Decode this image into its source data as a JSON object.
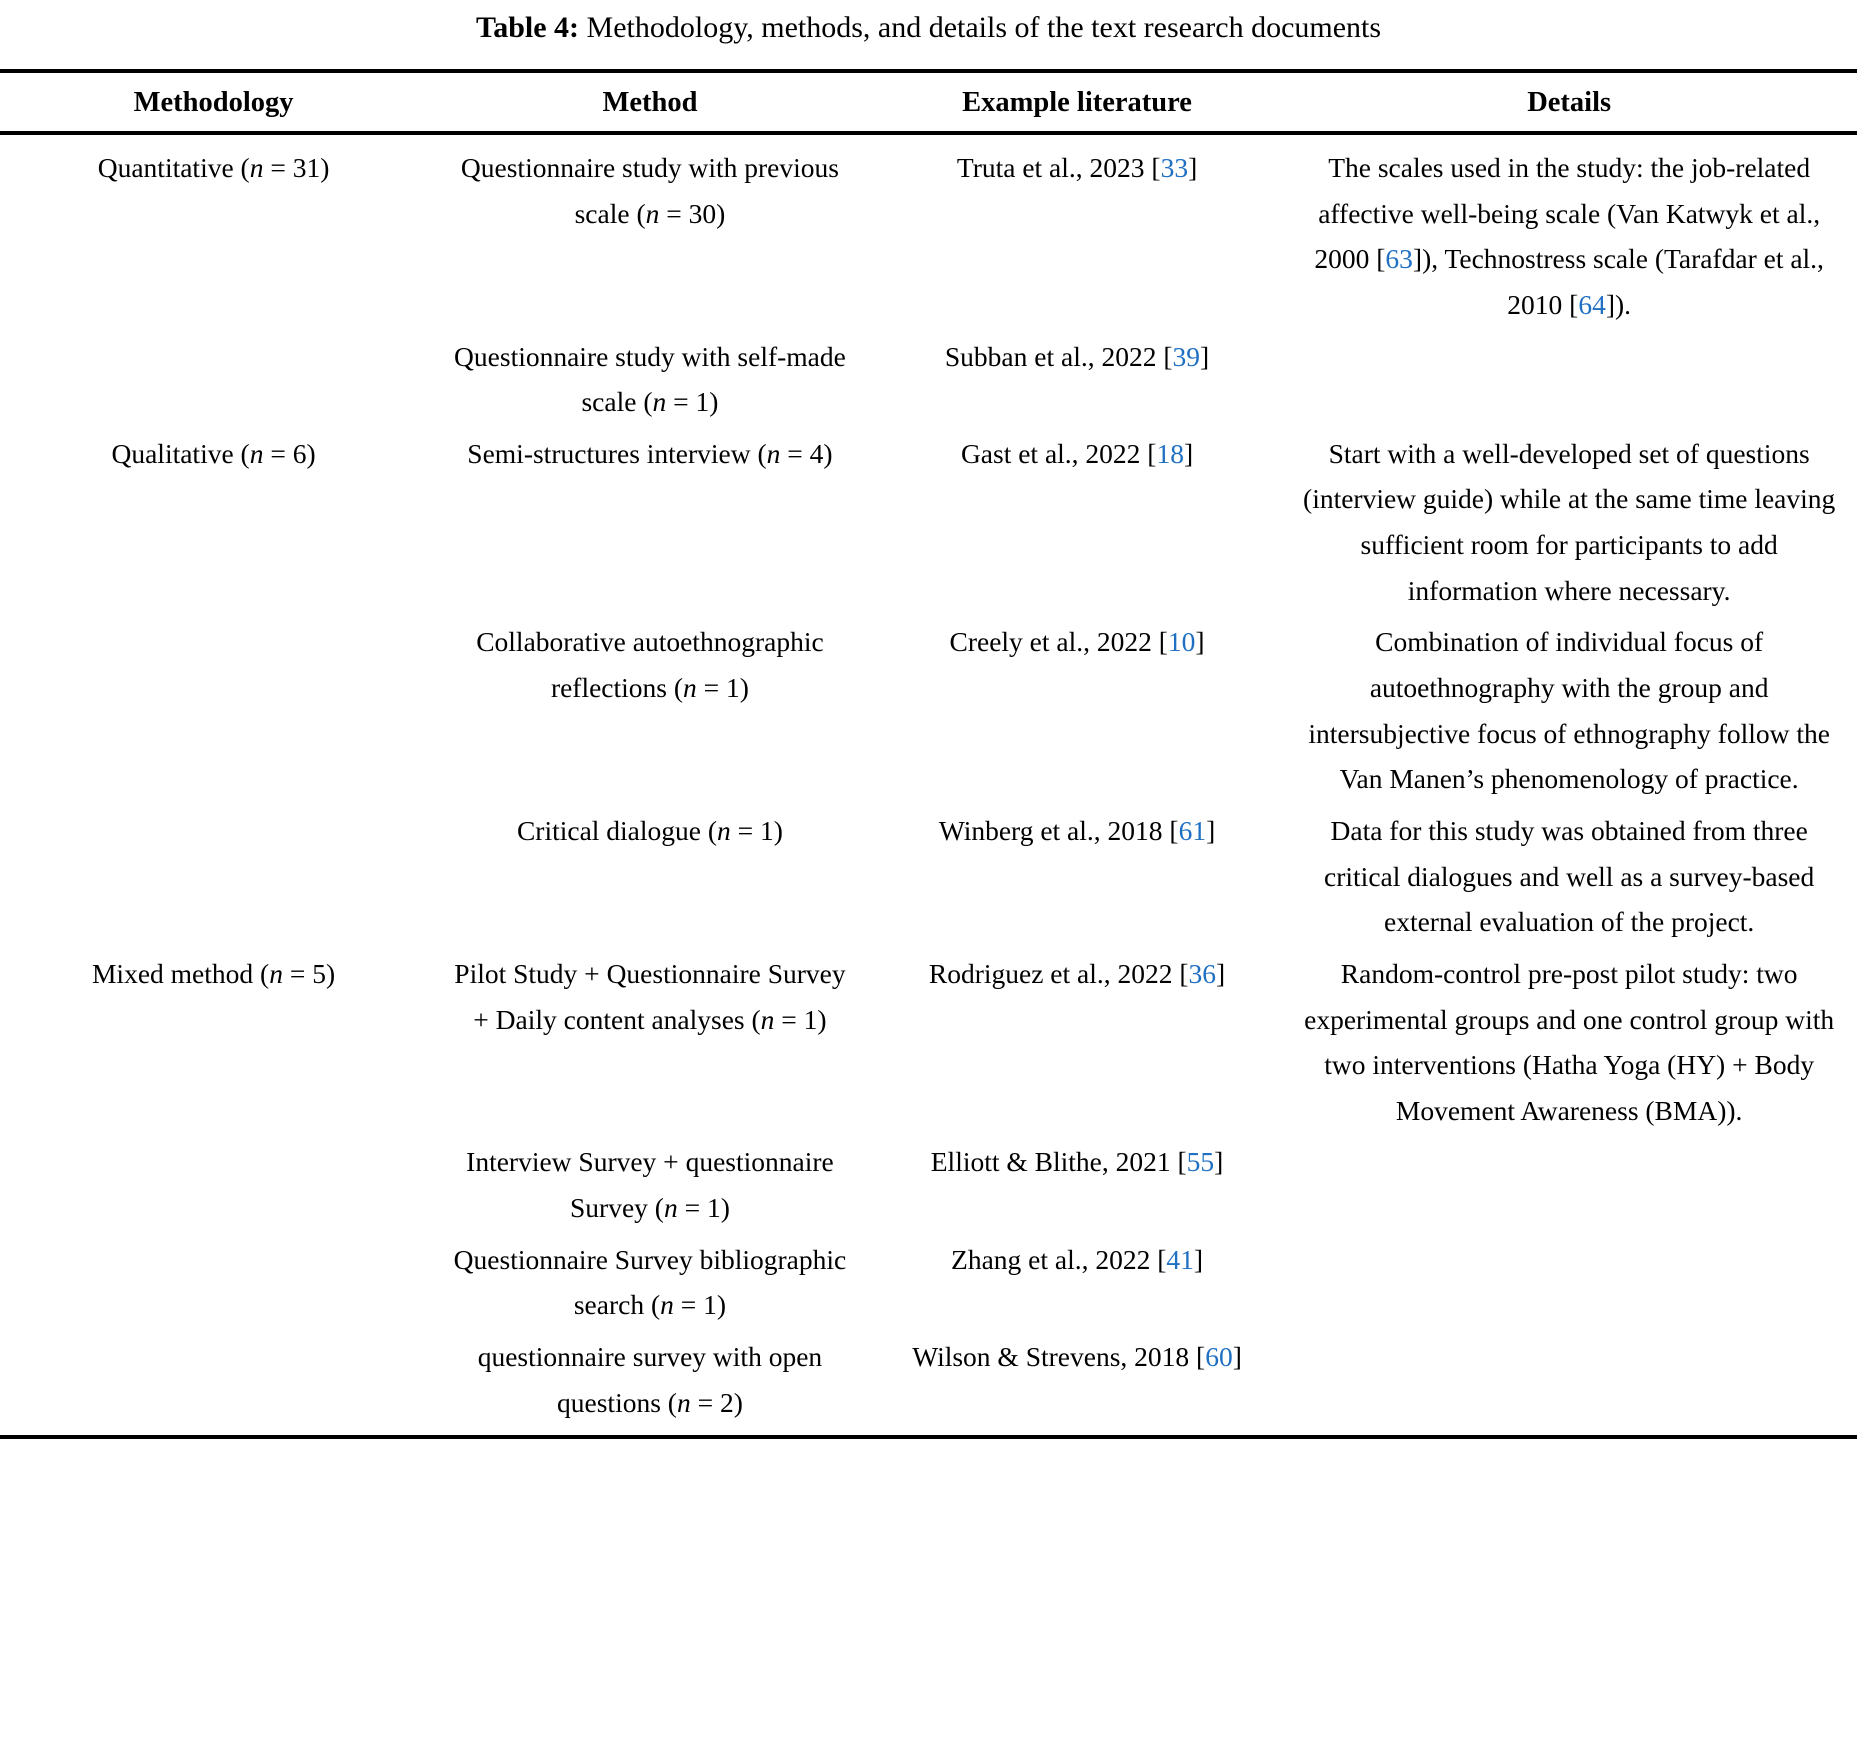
{
  "caption": {
    "label": "Table 4:",
    "text": " Methodology, methods, and details of the text research documents"
  },
  "colors": {
    "citation_blue": "#1f6fc2",
    "text": "#000000",
    "rule": "#000000"
  },
  "columns": [
    "Methodology",
    "Method",
    "Example literature",
    "Details"
  ],
  "rows": [
    {
      "methodology": "Quantitative (*n* = 31)",
      "method": "Questionnaire study with previous scale (*n* = 30)",
      "example": "Truta et al., 2023 [[33]]",
      "details": "The scales used in the study: the job-related affective well-being scale (Van Katwyk et al., 2000 [[63]]), Technostress scale (Tarafdar et al., 2010 [[64]])."
    },
    {
      "methodology": "",
      "method": "Questionnaire study with self-made scale (*n* = 1)",
      "example": "Subban et al., 2022 [[39]]",
      "details": ""
    },
    {
      "methodology": "Qualitative (*n* = 6)",
      "method": "Semi-structures interview (*n* = 4)",
      "example": "Gast et al., 2022 [[18]]",
      "details": "Start with a well-developed set of questions (interview guide) while at the same time leaving sufficient room for participants to add information where necessary."
    },
    {
      "methodology": "",
      "method": "Collaborative autoethnographic reflections (*n* = 1)",
      "example": "Creely et al., 2022 [[10]]",
      "details": "Combination of individual focus of autoethnography with the group and intersubjective focus of ethnography follow the Van Manen’s phenomenology of practice."
    },
    {
      "methodology": "",
      "method": "Critical dialogue (*n* = 1)",
      "example": "Winberg et al., 2018 [[61]]",
      "details": "Data for this study was obtained from three critical dialogues and well as a survey-based external evaluation of the project."
    },
    {
      "methodology": "Mixed method (*n* = 5)",
      "method": "Pilot Study + Questionnaire Survey + Daily content analyses (*n* = 1)",
      "example": "Rodriguez et al., 2022 [[36]]",
      "details": "Random-control pre-post pilot study: two experimental groups and one control group with two interventions (Hatha Yoga (HY) + Body Movement Awareness (BMA))."
    },
    {
      "methodology": "",
      "method": "Interview Survey + questionnaire Survey (*n* = 1)",
      "example": "Elliott & Blithe, 2021 [[55]]",
      "details": ""
    },
    {
      "methodology": "",
      "method": "Questionnaire Survey bibliographic search (*n* = 1)",
      "example": "Zhang et al., 2022 [[41]]",
      "details": ""
    },
    {
      "methodology": "",
      "method": "questionnaire survey with open questions (*n* = 2)",
      "example": "Wilson & Strevens, 2018 [[60]]",
      "details": ""
    }
  ]
}
